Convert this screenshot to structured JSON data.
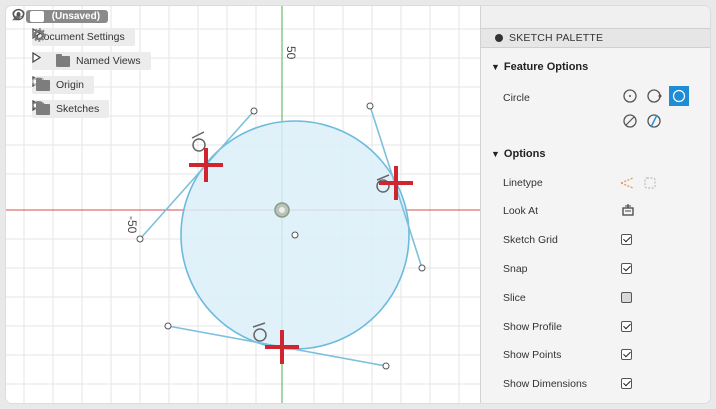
{
  "browser": {
    "root_label": "(Unsaved)",
    "items": [
      {
        "label": "Document Settings"
      },
      {
        "label": "Named Views"
      },
      {
        "label": "Origin"
      },
      {
        "label": "Sketches"
      }
    ]
  },
  "canvas": {
    "axis_label_top": "50",
    "axis_label_left": "-50",
    "colors": {
      "circle_fill": "#dbeef9",
      "circle_stroke": "#6cbadc",
      "tangent_line": "#7cc0dd",
      "axis_red": "#d05050",
      "axis_green": "#4caf50",
      "marker": "#d0252f",
      "grid": "#e6e6e6"
    }
  },
  "palette": {
    "header": "SKETCH PALETTE",
    "feature_options_title": "Feature Options",
    "circle_label": "Circle",
    "options_title": "Options",
    "rows": [
      {
        "label": "Linetype"
      },
      {
        "label": "Look At"
      },
      {
        "label": "Sketch Grid",
        "checked": true
      },
      {
        "label": "Snap",
        "checked": true
      },
      {
        "label": "Slice",
        "checked": false
      },
      {
        "label": "Show Profile",
        "checked": true
      },
      {
        "label": "Show Points",
        "checked": true
      },
      {
        "label": "Show Dimensions",
        "checked": true
      }
    ],
    "accent": "#1f8dd6"
  }
}
